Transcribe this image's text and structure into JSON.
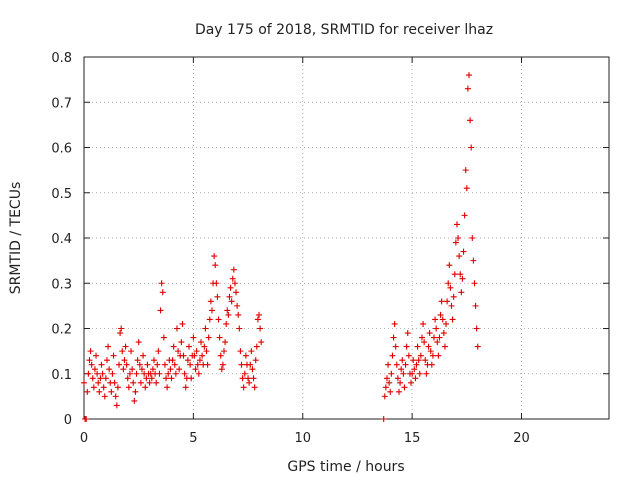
{
  "chart_data": {
    "type": "scatter",
    "title": "Day 175 of 2018, SRMTID for receiver lhaz",
    "xlabel": "GPS time / hours",
    "ylabel": "SRMTID / TECUs",
    "xlim": [
      0,
      24
    ],
    "ylim": [
      0,
      0.8
    ],
    "xticks": [
      0,
      5,
      10,
      15,
      20
    ],
    "xtick_labels": [
      "0",
      "5",
      "10",
      "15",
      "20"
    ],
    "yticks": [
      0,
      0.1,
      0.2,
      0.3,
      0.4,
      0.5,
      0.6,
      0.7,
      0.8
    ],
    "ytick_labels": [
      "0",
      "0.1",
      "0.2",
      "0.3",
      "0.4",
      "0.5",
      "0.6",
      "0.7",
      "0.8"
    ],
    "grid": true,
    "marker": "plus",
    "marker_color": "#e00000",
    "series": [
      {
        "name": "SRMTID",
        "points": [
          [
            0.0,
            0.08
          ],
          [
            0.05,
            0.0
          ],
          [
            0.1,
            0.0
          ],
          [
            0.15,
            0.06
          ],
          [
            0.2,
            0.1
          ],
          [
            0.25,
            0.13
          ],
          [
            0.3,
            0.15
          ],
          [
            0.35,
            0.12
          ],
          [
            0.4,
            0.09
          ],
          [
            0.45,
            0.07
          ],
          [
            0.5,
            0.11
          ],
          [
            0.55,
            0.14
          ],
          [
            0.6,
            0.1
          ],
          [
            0.65,
            0.08
          ],
          [
            0.7,
            0.06
          ],
          [
            0.75,
            0.09
          ],
          [
            0.8,
            0.12
          ],
          [
            0.85,
            0.1
          ],
          [
            0.9,
            0.07
          ],
          [
            0.95,
            0.05
          ],
          [
            1.0,
            0.09
          ],
          [
            1.05,
            0.13
          ],
          [
            1.1,
            0.16
          ],
          [
            1.15,
            0.11
          ],
          [
            1.2,
            0.08
          ],
          [
            1.25,
            0.06
          ],
          [
            1.3,
            0.1
          ],
          [
            1.35,
            0.14
          ],
          [
            1.4,
            0.08
          ],
          [
            1.45,
            0.05
          ],
          [
            1.5,
            0.03
          ],
          [
            1.55,
            0.07
          ],
          [
            1.6,
            0.12
          ],
          [
            1.65,
            0.19
          ],
          [
            1.7,
            0.2
          ],
          [
            1.75,
            0.15
          ],
          [
            1.8,
            0.11
          ],
          [
            1.85,
            0.13
          ],
          [
            1.9,
            0.16
          ],
          [
            1.95,
            0.12
          ],
          [
            2.0,
            0.09
          ],
          [
            2.05,
            0.07
          ],
          [
            2.1,
            0.1
          ],
          [
            2.15,
            0.15
          ],
          [
            2.2,
            0.11
          ],
          [
            2.25,
            0.08
          ],
          [
            2.3,
            0.04
          ],
          [
            2.35,
            0.06
          ],
          [
            2.4,
            0.1
          ],
          [
            2.45,
            0.13
          ],
          [
            2.5,
            0.17
          ],
          [
            2.55,
            0.12
          ],
          [
            2.6,
            0.08
          ],
          [
            2.65,
            0.11
          ],
          [
            2.7,
            0.14
          ],
          [
            2.75,
            0.1
          ],
          [
            2.8,
            0.07
          ],
          [
            2.85,
            0.09
          ],
          [
            2.9,
            0.12
          ],
          [
            2.95,
            0.1
          ],
          [
            3.0,
            0.08
          ],
          [
            3.05,
            0.1
          ],
          [
            3.1,
            0.09
          ],
          [
            3.15,
            0.11
          ],
          [
            3.2,
            0.13
          ],
          [
            3.25,
            0.1
          ],
          [
            3.3,
            0.08
          ],
          [
            3.35,
            0.12
          ],
          [
            3.4,
            0.15
          ],
          [
            3.45,
            0.1
          ],
          [
            3.5,
            0.24
          ],
          [
            3.55,
            0.3
          ],
          [
            3.6,
            0.28
          ],
          [
            3.65,
            0.18
          ],
          [
            3.7,
            0.12
          ],
          [
            3.75,
            0.09
          ],
          [
            3.8,
            0.07
          ],
          [
            3.85,
            0.1
          ],
          [
            3.9,
            0.13
          ],
          [
            3.95,
            0.11
          ],
          [
            4.0,
            0.09
          ],
          [
            4.05,
            0.13
          ],
          [
            4.1,
            0.16
          ],
          [
            4.15,
            0.12
          ],
          [
            4.2,
            0.1
          ],
          [
            4.25,
            0.2
          ],
          [
            4.3,
            0.15
          ],
          [
            4.35,
            0.11
          ],
          [
            4.4,
            0.14
          ],
          [
            4.45,
            0.17
          ],
          [
            4.5,
            0.21
          ],
          [
            4.55,
            0.14
          ],
          [
            4.6,
            0.1
          ],
          [
            4.65,
            0.07
          ],
          [
            4.7,
            0.09
          ],
          [
            4.75,
            0.13
          ],
          [
            4.8,
            0.16
          ],
          [
            4.85,
            0.12
          ],
          [
            4.9,
            0.09
          ],
          [
            4.95,
            0.14
          ],
          [
            5.0,
            0.18
          ],
          [
            5.05,
            0.14
          ],
          [
            5.1,
            0.11
          ],
          [
            5.15,
            0.15
          ],
          [
            5.2,
            0.12
          ],
          [
            5.25,
            0.1
          ],
          [
            5.3,
            0.13
          ],
          [
            5.35,
            0.17
          ],
          [
            5.4,
            0.14
          ],
          [
            5.45,
            0.12
          ],
          [
            5.5,
            0.16
          ],
          [
            5.55,
            0.2
          ],
          [
            5.6,
            0.15
          ],
          [
            5.65,
            0.12
          ],
          [
            5.7,
            0.18
          ],
          [
            5.75,
            0.22
          ],
          [
            5.8,
            0.26
          ],
          [
            5.85,
            0.24
          ],
          [
            5.9,
            0.3
          ],
          [
            5.95,
            0.36
          ],
          [
            6.0,
            0.34
          ],
          [
            6.05,
            0.3
          ],
          [
            6.1,
            0.27
          ],
          [
            6.15,
            0.22
          ],
          [
            6.2,
            0.18
          ],
          [
            6.25,
            0.14
          ],
          [
            6.3,
            0.11
          ],
          [
            6.35,
            0.12
          ],
          [
            6.4,
            0.15
          ],
          [
            6.45,
            0.17
          ],
          [
            6.5,
            0.21
          ],
          [
            6.55,
            0.24
          ],
          [
            6.6,
            0.23
          ],
          [
            6.65,
            0.27
          ],
          [
            6.7,
            0.29
          ],
          [
            6.75,
            0.26
          ],
          [
            6.8,
            0.31
          ],
          [
            6.85,
            0.33
          ],
          [
            6.9,
            0.3
          ],
          [
            6.95,
            0.28
          ],
          [
            7.0,
            0.25
          ],
          [
            7.05,
            0.23
          ],
          [
            7.1,
            0.2
          ],
          [
            7.15,
            0.15
          ],
          [
            7.2,
            0.12
          ],
          [
            7.25,
            0.09
          ],
          [
            7.3,
            0.07
          ],
          [
            7.35,
            0.1
          ],
          [
            7.4,
            0.14
          ],
          [
            7.45,
            0.12
          ],
          [
            7.5,
            0.09
          ],
          [
            7.55,
            0.08
          ],
          [
            7.6,
            0.12
          ],
          [
            7.65,
            0.15
          ],
          [
            7.7,
            0.11
          ],
          [
            7.75,
            0.09
          ],
          [
            7.8,
            0.07
          ],
          [
            7.85,
            0.13
          ],
          [
            7.9,
            0.16
          ],
          [
            7.95,
            0.22
          ],
          [
            8.0,
            0.23
          ],
          [
            8.05,
            0.2
          ],
          [
            8.1,
            0.17
          ],
          [
            13.7,
            0.0
          ],
          [
            13.75,
            0.05
          ],
          [
            13.8,
            0.07
          ],
          [
            13.85,
            0.09
          ],
          [
            13.9,
            0.12
          ],
          [
            13.95,
            0.08
          ],
          [
            14.0,
            0.06
          ],
          [
            14.05,
            0.1
          ],
          [
            14.1,
            0.14
          ],
          [
            14.15,
            0.18
          ],
          [
            14.2,
            0.21
          ],
          [
            14.25,
            0.16
          ],
          [
            14.3,
            0.12
          ],
          [
            14.35,
            0.09
          ],
          [
            14.4,
            0.06
          ],
          [
            14.45,
            0.08
          ],
          [
            14.5,
            0.11
          ],
          [
            14.55,
            0.13
          ],
          [
            14.6,
            0.1
          ],
          [
            14.65,
            0.07
          ],
          [
            14.7,
            0.12
          ],
          [
            14.75,
            0.16
          ],
          [
            14.8,
            0.19
          ],
          [
            14.85,
            0.14
          ],
          [
            14.9,
            0.1
          ],
          [
            14.95,
            0.08
          ],
          [
            15.0,
            0.1
          ],
          [
            15.05,
            0.13
          ],
          [
            15.1,
            0.11
          ],
          [
            15.15,
            0.09
          ],
          [
            15.2,
            0.12
          ],
          [
            15.25,
            0.16
          ],
          [
            15.3,
            0.13
          ],
          [
            15.35,
            0.1
          ],
          [
            15.4,
            0.14
          ],
          [
            15.45,
            0.18
          ],
          [
            15.5,
            0.21
          ],
          [
            15.55,
            0.17
          ],
          [
            15.6,
            0.13
          ],
          [
            15.65,
            0.1
          ],
          [
            15.7,
            0.12
          ],
          [
            15.75,
            0.16
          ],
          [
            15.8,
            0.19
          ],
          [
            15.85,
            0.15
          ],
          [
            15.9,
            0.12
          ],
          [
            15.95,
            0.14
          ],
          [
            16.0,
            0.18
          ],
          [
            16.05,
            0.22
          ],
          [
            16.1,
            0.2
          ],
          [
            16.15,
            0.17
          ],
          [
            16.2,
            0.14
          ],
          [
            16.25,
            0.18
          ],
          [
            16.3,
            0.23
          ],
          [
            16.35,
            0.26
          ],
          [
            16.4,
            0.22
          ],
          [
            16.45,
            0.19
          ],
          [
            16.5,
            0.16
          ],
          [
            16.55,
            0.21
          ],
          [
            16.6,
            0.26
          ],
          [
            16.65,
            0.3
          ],
          [
            16.7,
            0.34
          ],
          [
            16.75,
            0.29
          ],
          [
            16.8,
            0.25
          ],
          [
            16.85,
            0.22
          ],
          [
            16.9,
            0.27
          ],
          [
            16.95,
            0.32
          ],
          [
            17.0,
            0.39
          ],
          [
            17.05,
            0.43
          ],
          [
            17.1,
            0.4
          ],
          [
            17.15,
            0.36
          ],
          [
            17.2,
            0.32
          ],
          [
            17.25,
            0.28
          ],
          [
            17.3,
            0.31
          ],
          [
            17.35,
            0.37
          ],
          [
            17.4,
            0.45
          ],
          [
            17.45,
            0.55
          ],
          [
            17.5,
            0.51
          ],
          [
            17.55,
            0.73
          ],
          [
            17.6,
            0.76
          ],
          [
            17.65,
            0.66
          ],
          [
            17.7,
            0.6
          ],
          [
            17.75,
            0.4
          ],
          [
            17.8,
            0.35
          ],
          [
            17.85,
            0.3
          ],
          [
            17.9,
            0.25
          ],
          [
            17.95,
            0.2
          ],
          [
            18.0,
            0.16
          ]
        ]
      }
    ]
  }
}
